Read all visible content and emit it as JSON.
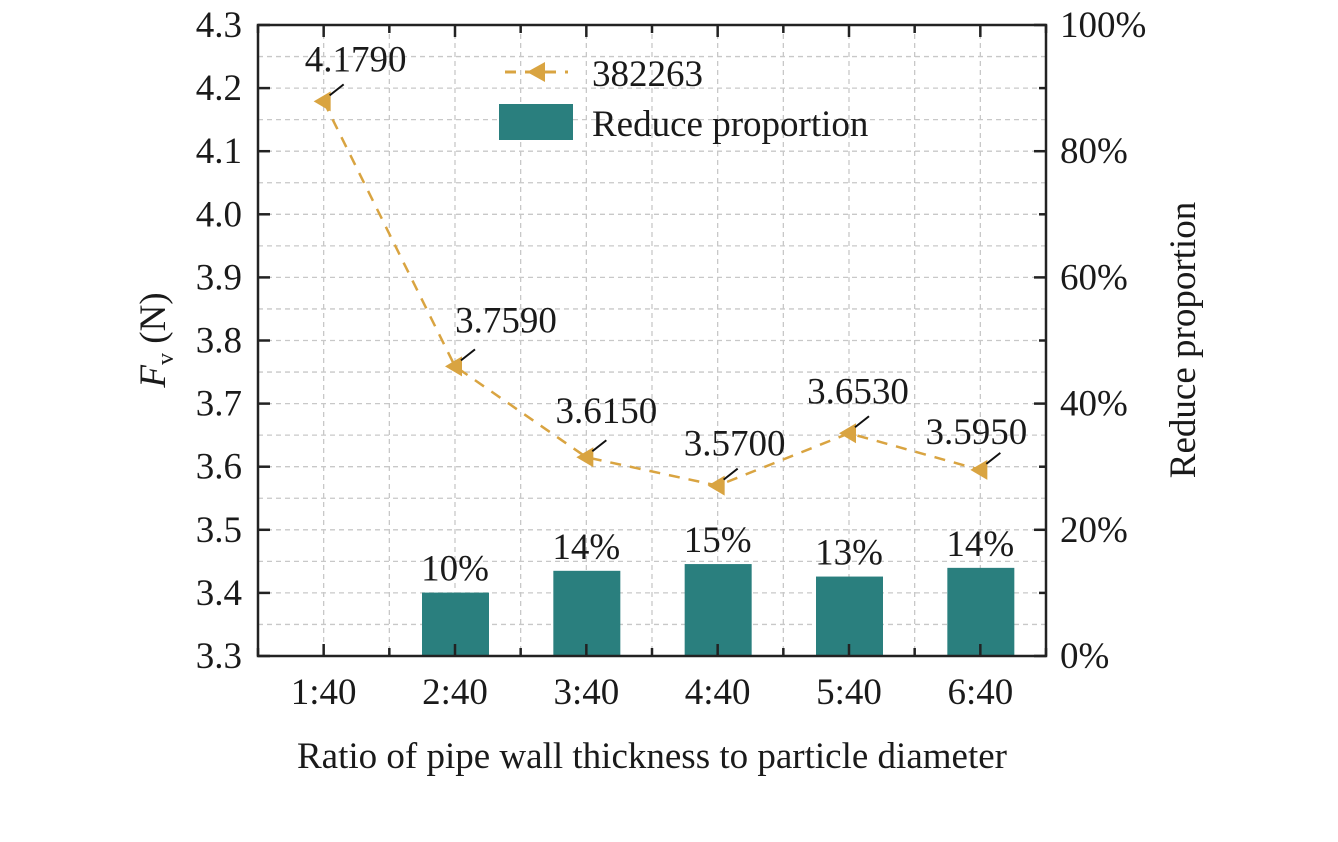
{
  "chart_data": {
    "type": "bar+line",
    "categories": [
      "1:40",
      "2:40",
      "3:40",
      "4:40",
      "5:40",
      "6:40"
    ],
    "xlabel": "Ratio of pipe wall thickness to particle diameter",
    "ylabel_left": {
      "main": "F",
      "sub": "v",
      "unit": " (N)"
    },
    "ylabel_right": "Reduce proportion",
    "ylim_left": [
      3.3,
      4.3
    ],
    "yticks_left": [
      "3.3",
      "3.4",
      "3.5",
      "3.6",
      "3.7",
      "3.8",
      "3.9",
      "4.0",
      "4.1",
      "4.2",
      "4.3"
    ],
    "ylim_right": [
      0,
      100
    ],
    "yticks_right": [
      "0%",
      "20%",
      "40%",
      "60%",
      "80%",
      "100%"
    ],
    "grid": true,
    "legend_position": "top-center",
    "series": [
      {
        "name": "382263",
        "type": "line",
        "axis": "left",
        "color": "#D9A441",
        "values": [
          4.179,
          3.759,
          3.615,
          3.57,
          3.653,
          3.595
        ],
        "labels": [
          "4.1790",
          "3.7590",
          "3.6150",
          "3.5700",
          "3.6530",
          "3.5950"
        ]
      },
      {
        "name": "Reduce proportion",
        "type": "bar",
        "axis": "right",
        "color": "#2A7F7E",
        "values": [
          null,
          10.05,
          13.5,
          14.57,
          12.59,
          13.97
        ],
        "labels": [
          "",
          "10%",
          "14%",
          "15%",
          "13%",
          "14%"
        ]
      }
    ]
  }
}
